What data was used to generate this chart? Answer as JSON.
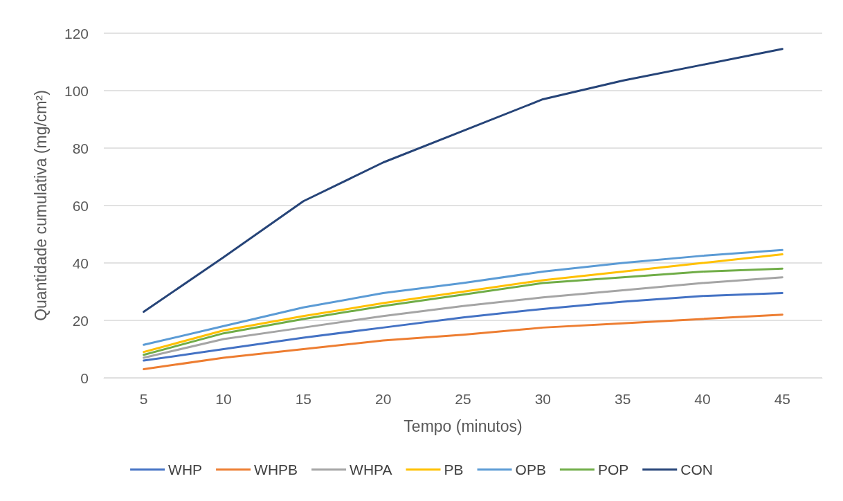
{
  "chart_data": {
    "type": "line",
    "xlabel": "Tempo (minutos)",
    "ylabel": "Quantidade cumulativa (mg/cm²)",
    "categories": [
      "5",
      "10",
      "15",
      "20",
      "25",
      "30",
      "35",
      "40",
      "45"
    ],
    "series": [
      {
        "name": "WHP",
        "color": "#4472c4",
        "values": [
          6,
          10,
          14,
          17.5,
          21,
          24,
          26.5,
          28.5,
          29.5
        ]
      },
      {
        "name": "WHPB",
        "color": "#ed7d31",
        "values": [
          3,
          7,
          10,
          13,
          15,
          17.5,
          19,
          20.5,
          22
        ]
      },
      {
        "name": "WHPA",
        "color": "#a5a5a5",
        "values": [
          7,
          13.5,
          17.5,
          21.5,
          25,
          28,
          30.5,
          33,
          35
        ]
      },
      {
        "name": "PB",
        "color": "#ffc000",
        "values": [
          9,
          16.5,
          21.5,
          26,
          30,
          34,
          37,
          40,
          43
        ]
      },
      {
        "name": "OPB",
        "color": "#5b9bd5",
        "values": [
          11.5,
          18,
          24.5,
          29.5,
          33,
          37,
          40,
          42.5,
          44.5
        ]
      },
      {
        "name": "POP",
        "color": "#70ad47",
        "values": [
          8,
          15.5,
          20.5,
          25,
          29,
          33,
          35,
          37,
          38
        ]
      },
      {
        "name": "CON",
        "color": "#264478",
        "values": [
          23,
          42,
          61.5,
          75,
          86,
          97,
          103.5,
          109,
          114.5
        ]
      }
    ],
    "ylim": [
      0,
      120
    ],
    "yticks": [
      0,
      20,
      40,
      60,
      80,
      100,
      120
    ],
    "grid": "y",
    "legend": "bottom",
    "marker": "none",
    "line_style": "solid"
  }
}
